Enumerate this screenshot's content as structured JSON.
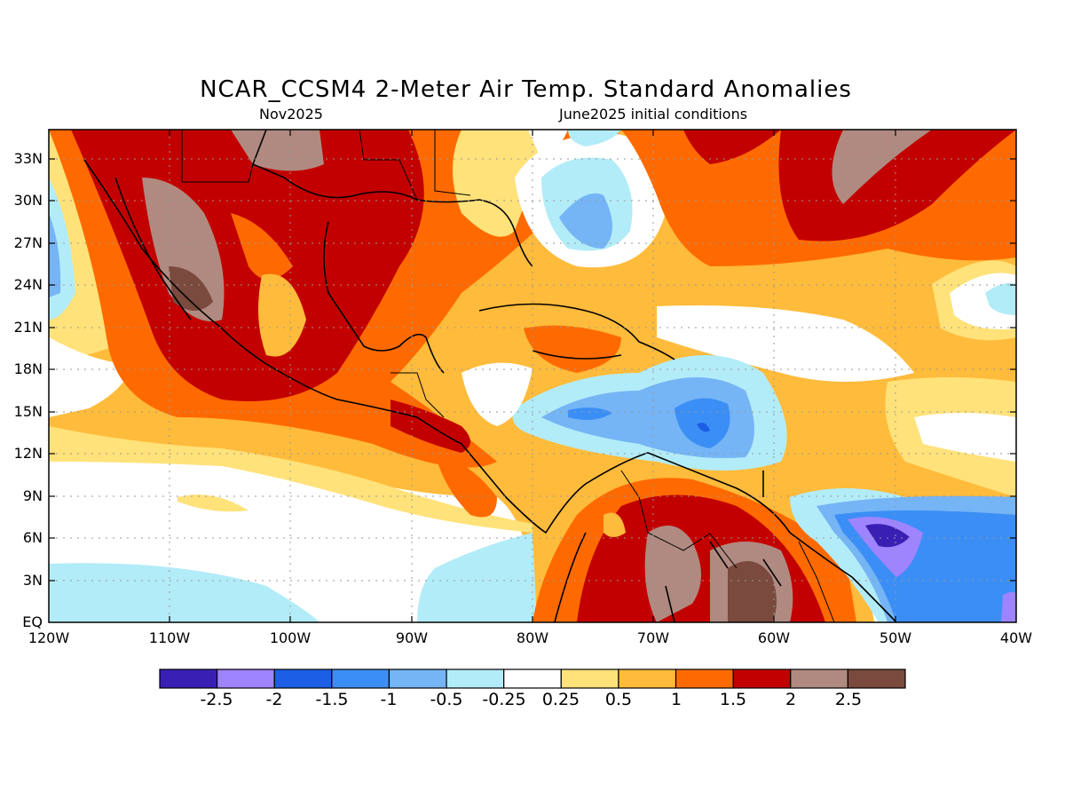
{
  "title": "NCAR_CCSM4 2-Meter Air Temp. Standard Anomalies",
  "valid_month": "Nov2025",
  "init_conditions": "June2025 initial conditions",
  "lat_labels": [
    "33N",
    "30N",
    "27N",
    "24N",
    "21N",
    "18N",
    "15N",
    "12N",
    "9N",
    "6N",
    "3N",
    "EQ"
  ],
  "lon_labels": [
    "120W",
    "110W",
    "100W",
    "90W",
    "80W",
    "70W",
    "60W",
    "50W",
    "40W"
  ],
  "colorbar": {
    "colors": [
      "#3a1fb4",
      "#9e84ff",
      "#1c5fe6",
      "#3b8ef5",
      "#75b4f5",
      "#b2ecf8",
      "#ffffff",
      "#ffe27a",
      "#ffbb3b",
      "#ff6a00",
      "#c30000",
      "#b08a80",
      "#7a4a3e"
    ],
    "labels": [
      "-2.5",
      "-2",
      "-1.5",
      "-1",
      "-0.5",
      "-0.25",
      "0.25",
      "0.5",
      "1",
      "1.5",
      "2",
      "2.5"
    ]
  }
}
